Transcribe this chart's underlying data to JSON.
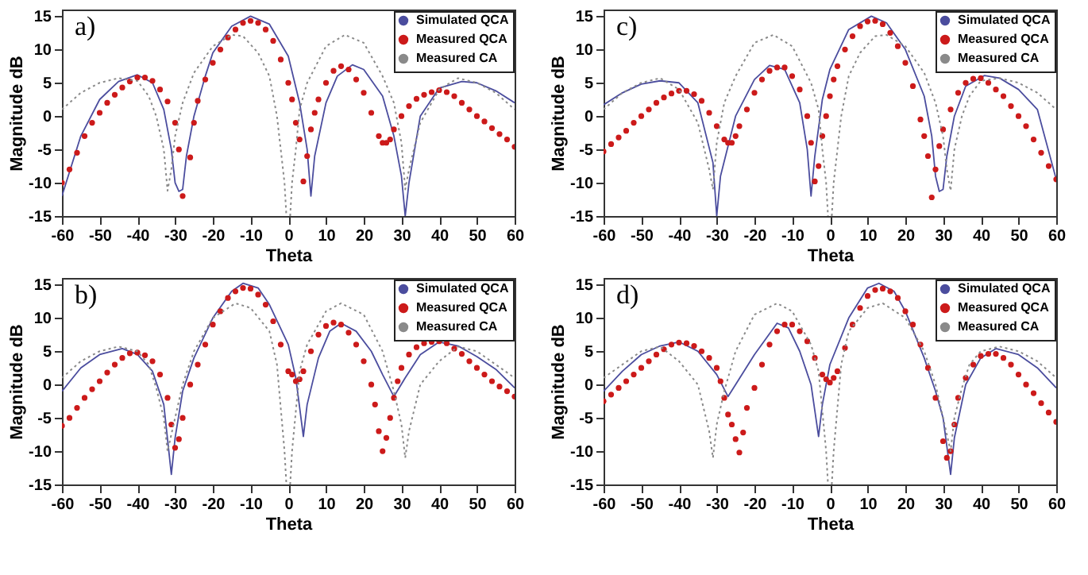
{
  "chart_data": [
    {
      "type": "line",
      "annotations": [
        "a)"
      ],
      "xlabel": "Theta",
      "ylabel": "Magnitude dB",
      "xlim": [
        -60,
        60
      ],
      "ylim": [
        -15,
        16
      ],
      "xticks": [
        -60,
        -50,
        -40,
        -30,
        -20,
        -10,
        0,
        10,
        20,
        30,
        40,
        50,
        60
      ],
      "yticks": [
        -15,
        -10,
        -5,
        0,
        5,
        10,
        15
      ],
      "legend": "top right",
      "series": [
        {
          "name": "Simulated QCA",
          "type": "line",
          "line_style": "solid",
          "color": "#4b4d9e",
          "x": [
            -60,
            -55,
            -50,
            -45,
            -40,
            -36,
            -33,
            -31,
            -30,
            -29,
            -28,
            -27,
            -25,
            -22,
            -20,
            -15,
            -10,
            -5,
            0,
            3,
            5,
            6,
            7,
            10,
            13,
            17,
            20,
            25,
            28,
            30,
            31,
            32,
            35,
            40,
            46,
            50,
            55,
            60
          ],
          "values": [
            -12,
            -3,
            2.5,
            5.2,
            6.2,
            5,
            1,
            -5,
            -10,
            -11.3,
            -11,
            -6,
            0,
            6,
            9.5,
            13.5,
            15,
            13.8,
            9,
            2,
            -5,
            -12,
            -6,
            2,
            6,
            7.7,
            7,
            3,
            -3,
            -9,
            -15,
            -10,
            0,
            4.2,
            5.2,
            5,
            3.8,
            2
          ]
        },
        {
          "name": "Measured QCA",
          "type": "scatter",
          "marker": "circle",
          "color": "#cc1a1a",
          "x": [
            -60,
            -58,
            -56,
            -54,
            -52,
            -50,
            -48,
            -46,
            -44,
            -42,
            -40,
            -38,
            -36,
            -34,
            -32,
            -30,
            -29,
            -28,
            -26,
            -25,
            -24,
            -22,
            -20,
            -18,
            -16,
            -14,
            -12,
            -10,
            -8,
            -6,
            -4,
            -2,
            0,
            1,
            2,
            3,
            4,
            5,
            6,
            7,
            8,
            10,
            12,
            14,
            16,
            18,
            20,
            22,
            24,
            25,
            26,
            27,
            28,
            30,
            32,
            34,
            36,
            38,
            40,
            42,
            44,
            46,
            48,
            50,
            52,
            54,
            56,
            58,
            60
          ],
          "values": [
            -10,
            -8,
            -5.5,
            -3,
            -1,
            0.5,
            2,
            3.2,
            4.3,
            5.2,
            5.8,
            5.8,
            5.3,
            4,
            2.2,
            -1,
            -5,
            -12,
            -6.2,
            -1,
            2.3,
            5.5,
            8,
            10,
            11.8,
            13,
            14,
            14.3,
            14,
            13,
            11.3,
            8.5,
            5,
            2.5,
            -1,
            -3.5,
            -9.8,
            -6,
            -2,
            0.5,
            2.5,
            5,
            6.8,
            7.5,
            7,
            5.5,
            3.5,
            0.5,
            -3,
            -4,
            -4,
            -3.5,
            -2,
            0,
            1.5,
            2.6,
            3.2,
            3.6,
            3.9,
            3.6,
            3,
            2,
            1,
            0,
            -0.8,
            -1.8,
            -2.7,
            -3.5,
            -4.6
          ]
        },
        {
          "name": "Measured CA",
          "type": "line",
          "line_style": "dotted",
          "color": "#8a8a8a",
          "x": [
            -60,
            -55,
            -50,
            -45,
            -40,
            -37,
            -35,
            -33,
            -32,
            -31,
            -30,
            -28,
            -25,
            -20,
            -15,
            -12,
            -8,
            -5,
            -3,
            -1,
            -0.5,
            0,
            0.5,
            1,
            2,
            3,
            5,
            10,
            15,
            20,
            25,
            28,
            30,
            31,
            32,
            35,
            40,
            45,
            50,
            55,
            60
          ],
          "values": [
            1,
            3.5,
            5,
            5.7,
            5.3,
            3,
            0,
            -5,
            -11.2,
            -8,
            -3,
            2,
            6.5,
            10.5,
            12.2,
            12,
            9.5,
            6,
            0,
            -10,
            -15,
            null,
            -15,
            -10,
            -5,
            1,
            5,
            10.5,
            12.2,
            11,
            6,
            2,
            -4,
            -11,
            -8,
            -1,
            4,
            5.7,
            5,
            3.5,
            1
          ]
        }
      ]
    },
    {
      "type": "line",
      "annotations": [
        "c)"
      ],
      "xlabel": "Theta",
      "ylabel": "Magnitude dB",
      "xlim": [
        -60,
        60
      ],
      "ylim": [
        -15,
        16
      ],
      "xticks": [
        -60,
        -50,
        -40,
        -30,
        -20,
        -10,
        0,
        10,
        20,
        30,
        40,
        50,
        60
      ],
      "yticks": [
        -15,
        -10,
        -5,
        0,
        5,
        10,
        15
      ],
      "legend": "top right",
      "series": [
        {
          "name": "Simulated QCA",
          "type": "line",
          "line_style": "solid",
          "color": "#4b4d9e",
          "x": [
            -60,
            -55,
            -50,
            -45,
            -40,
            -35,
            -31,
            -30,
            -29,
            -25,
            -20,
            -16,
            -12,
            -8,
            -6,
            -5,
            -4,
            -2,
            0,
            5,
            11,
            15,
            20,
            25,
            27,
            28,
            29,
            30,
            31,
            33,
            36,
            41,
            45,
            50,
            55,
            60
          ],
          "values": [
            1.7,
            3.5,
            4.8,
            5.3,
            5,
            2,
            -7,
            -15,
            -9,
            0,
            5.5,
            7.6,
            7,
            2,
            -5,
            -12,
            -6,
            2.5,
            7,
            13,
            15,
            14,
            10,
            3,
            -3,
            -9,
            -11.3,
            -11,
            -6,
            0,
            4.5,
            6.1,
            5.7,
            4,
            1,
            -9.5
          ]
        },
        {
          "name": "Measured QCA",
          "type": "scatter",
          "marker": "circle",
          "color": "#cc1a1a",
          "x": [
            -60,
            -58,
            -56,
            -54,
            -52,
            -50,
            -48,
            -46,
            -44,
            -42,
            -40,
            -38,
            -36,
            -34,
            -32,
            -30,
            -28,
            -27,
            -26,
            -25,
            -24,
            -22,
            -20,
            -18,
            -16,
            -14,
            -12,
            -10,
            -8,
            -6,
            -5,
            -4,
            -3,
            -2,
            -1,
            0,
            1,
            2,
            4,
            6,
            8,
            10,
            12,
            14,
            16,
            18,
            20,
            22,
            24,
            25,
            26,
            27,
            28,
            29,
            30,
            32,
            34,
            36,
            38,
            40,
            42,
            44,
            46,
            48,
            50,
            52,
            54,
            56,
            58,
            60
          ],
          "values": [
            -5.3,
            -4.2,
            -3.2,
            -2.2,
            -1,
            0,
            1,
            2,
            2.8,
            3.4,
            3.8,
            3.8,
            3.3,
            2.3,
            0.5,
            -1.5,
            -3.5,
            -4,
            -4,
            -3,
            -1.5,
            1,
            3.5,
            5.5,
            6.8,
            7.3,
            7.3,
            6,
            4,
            0,
            -4,
            -9.8,
            -7.5,
            -3,
            0,
            3,
            5.5,
            7.5,
            10,
            12,
            13.5,
            14.2,
            14.3,
            13.8,
            12.5,
            10.5,
            8,
            4.5,
            -0.5,
            -3,
            -6,
            -12.2,
            -8,
            -4.5,
            -2,
            1,
            3.5,
            5,
            5.6,
            5.7,
            5,
            4,
            3,
            1.5,
            0,
            -1.5,
            -3.5,
            -5.5,
            -7.5,
            -9.5
          ]
        },
        {
          "name": "Measured CA",
          "type": "line",
          "line_style": "dotted",
          "color": "#8a8a8a",
          "x": [
            -60,
            -55,
            -50,
            -45,
            -40,
            -35,
            -32,
            -31,
            -30,
            -28,
            -25,
            -20,
            -15,
            -10,
            -5,
            -3,
            -2,
            -1,
            -0.5,
            0,
            0.5,
            1,
            3,
            5,
            8,
            12,
            15,
            20,
            25,
            28,
            30,
            31,
            32,
            33,
            35,
            37,
            40,
            45,
            50,
            55,
            60
          ],
          "values": [
            1,
            3.5,
            5,
            5.7,
            4,
            -1,
            -8,
            -11,
            -4,
            2,
            6,
            11,
            12.2,
            10.5,
            5,
            1,
            -5,
            -10,
            -15,
            null,
            -15,
            -10,
            0,
            6,
            9.5,
            12,
            12.2,
            10.5,
            6.5,
            2,
            -3,
            -8,
            -11.2,
            -5,
            0,
            3,
            5.3,
            5.7,
            5,
            3.5,
            1
          ]
        }
      ]
    },
    {
      "type": "line",
      "annotations": [
        "b)"
      ],
      "xlabel": "Theta",
      "ylabel": "Magnitude dB",
      "xlim": [
        -60,
        60
      ],
      "ylim": [
        -15,
        16
      ],
      "xticks": [
        -60,
        -50,
        -40,
        -30,
        -20,
        -10,
        0,
        10,
        20,
        30,
        40,
        50,
        60
      ],
      "yticks": [
        -15,
        -10,
        -5,
        0,
        5,
        10,
        15
      ],
      "legend": "top right",
      "series": [
        {
          "name": "Simulated QCA",
          "type": "line",
          "line_style": "solid",
          "color": "#4b4d9e",
          "x": [
            -60,
            -55,
            -50,
            -44,
            -40,
            -36,
            -33,
            -31,
            -30,
            -28,
            -25,
            -20,
            -15,
            -12,
            -8,
            -5,
            0,
            2,
            4,
            5,
            8,
            11,
            14,
            18,
            22,
            25,
            28,
            31,
            35,
            40,
            45,
            50,
            55,
            60
          ],
          "values": [
            -1,
            2.5,
            4.5,
            5.4,
            4.5,
            2,
            -3,
            -13.5,
            -8,
            -1,
            4,
            10,
            14,
            15.2,
            14.5,
            12,
            6,
            1,
            -7.8,
            -3,
            4,
            8,
            9.2,
            8,
            5,
            1.5,
            -1.8,
            1,
            4.5,
            6.4,
            5.8,
            4.2,
            2.3,
            -0.5
          ]
        },
        {
          "name": "Measured QCA",
          "type": "scatter",
          "marker": "circle",
          "color": "#cc1a1a",
          "x": [
            -60,
            -58,
            -56,
            -54,
            -52,
            -50,
            -48,
            -46,
            -44,
            -42,
            -40,
            -38,
            -36,
            -34,
            -32,
            -31,
            -30,
            -29,
            -28,
            -26,
            -24,
            -22,
            -20,
            -18,
            -16,
            -14,
            -12,
            -10,
            -8,
            -6,
            -4,
            -2,
            0,
            1,
            2,
            3,
            4,
            6,
            8,
            10,
            12,
            14,
            16,
            18,
            20,
            22,
            23,
            24,
            25,
            26,
            27,
            28,
            29,
            30,
            32,
            34,
            36,
            38,
            40,
            42,
            44,
            46,
            48,
            50,
            52,
            54,
            56,
            58,
            60
          ],
          "values": [
            -6.2,
            -5,
            -3.5,
            -2,
            -0.7,
            0.5,
            1.8,
            3,
            4,
            4.7,
            4.8,
            4.4,
            3.5,
            1.5,
            -2,
            -6,
            -9.5,
            -8.2,
            -5,
            0,
            3,
            6,
            9,
            11,
            13,
            14,
            14.5,
            14.4,
            13.5,
            12,
            9.5,
            6,
            2,
            1.5,
            0.5,
            0.8,
            2,
            5,
            7.5,
            8.8,
            9.3,
            9,
            7.8,
            6,
            3.5,
            0,
            -3,
            -7,
            -10,
            -8,
            -5,
            -2,
            0.5,
            2.5,
            4.5,
            5.6,
            6.2,
            6.4,
            6.5,
            6.2,
            5.4,
            4.6,
            3.5,
            2.5,
            1.5,
            0.5,
            -0.3,
            -1,
            -1.8
          ]
        },
        {
          "name": "Measured CA",
          "type": "line",
          "line_style": "dotted",
          "color": "#8a8a8a",
          "x": [
            -60,
            -55,
            -50,
            -45,
            -40,
            -37,
            -35,
            -33,
            -32,
            -30,
            -28,
            -25,
            -20,
            -14,
            -10,
            -5,
            -3,
            -1,
            -0.5,
            0,
            0.5,
            1,
            3,
            5,
            10,
            14,
            20,
            25,
            28,
            30,
            31,
            32,
            35,
            40,
            45,
            50,
            55,
            60
          ],
          "values": [
            1,
            3.5,
            5,
            5.7,
            5,
            3,
            -0.5,
            -5,
            -10,
            -5,
            0,
            5,
            10,
            12.2,
            11.5,
            8,
            3,
            -10,
            -15,
            null,
            -15,
            -10,
            2,
            6,
            11,
            12.2,
            10.5,
            5,
            -1,
            -6,
            -11,
            -7,
            0,
            3.5,
            5.7,
            5,
            3,
            1
          ]
        }
      ]
    },
    {
      "type": "line",
      "annotations": [
        "d)"
      ],
      "xlabel": "Theta",
      "ylabel": "Magnitude dB",
      "xlim": [
        -60,
        60
      ],
      "ylim": [
        -15,
        16
      ],
      "xticks": [
        -60,
        -50,
        -40,
        -30,
        -20,
        -10,
        0,
        10,
        20,
        30,
        40,
        50,
        60
      ],
      "yticks": [
        -15,
        -10,
        -5,
        0,
        5,
        10,
        15
      ],
      "legend": "top right",
      "series": [
        {
          "name": "Simulated QCA",
          "type": "line",
          "line_style": "solid",
          "color": "#4b4d9e",
          "x": [
            -60,
            -55,
            -50,
            -45,
            -40,
            -35,
            -30,
            -27,
            -25,
            -20,
            -14,
            -11,
            -8,
            -5,
            -3,
            -2,
            0,
            5,
            10,
            13,
            17,
            20,
            25,
            28,
            30,
            32,
            33,
            36,
            40,
            44,
            50,
            55,
            60
          ],
          "values": [
            -1,
            2,
            4.5,
            5.8,
            6.4,
            5,
            1.5,
            -1.8,
            0,
            4.5,
            9.2,
            8.5,
            5,
            0,
            -7.8,
            -3,
            3,
            10,
            14.5,
            15.2,
            14,
            11,
            4,
            -1,
            -5,
            -13.5,
            -8,
            0,
            4,
            5.4,
            4.5,
            2.5,
            -0.5
          ]
        },
        {
          "name": "Measured QCA",
          "type": "scatter",
          "marker": "circle",
          "color": "#cc1a1a",
          "x": [
            -60,
            -58,
            -56,
            -54,
            -52,
            -50,
            -48,
            -46,
            -44,
            -42,
            -40,
            -38,
            -36,
            -34,
            -32,
            -30,
            -29,
            -28,
            -27,
            -26,
            -25,
            -24,
            -23,
            -22,
            -20,
            -18,
            -16,
            -14,
            -12,
            -10,
            -8,
            -6,
            -4,
            -2,
            -1,
            0,
            1,
            2,
            4,
            6,
            8,
            10,
            12,
            14,
            16,
            18,
            20,
            22,
            24,
            26,
            28,
            30,
            31,
            32,
            33,
            34,
            36,
            38,
            40,
            42,
            44,
            46,
            48,
            50,
            52,
            54,
            56,
            58,
            60
          ],
          "values": [
            -2.5,
            -1.5,
            -0.5,
            0.5,
            1.5,
            2.5,
            3.5,
            4.5,
            5.3,
            6,
            6.3,
            6.2,
            5.8,
            5,
            4,
            2.5,
            0.5,
            -2,
            -4.5,
            -6,
            -8.2,
            -10.2,
            -7.2,
            -3.5,
            -0.5,
            3,
            6,
            8,
            9,
            9,
            8,
            6.5,
            4,
            1.5,
            0.8,
            0.3,
            1,
            2,
            5.5,
            9,
            11.5,
            13.3,
            14.2,
            14.4,
            14,
            13,
            11,
            9,
            6,
            2.5,
            -2,
            -8.5,
            -11,
            -10,
            -6,
            -2,
            1,
            3,
            4.3,
            4.6,
            4.6,
            4,
            3,
            1.5,
            0,
            -1.3,
            -2.8,
            -4.2,
            -5.6
          ]
        },
        {
          "name": "Measured CA",
          "type": "line",
          "line_style": "dotted",
          "color": "#8a8a8a",
          "x": [
            -60,
            -55,
            -50,
            -45,
            -40,
            -35,
            -32,
            -31,
            -30,
            -28,
            -25,
            -20,
            -14,
            -10,
            -5,
            -3,
            -1,
            -0.5,
            0,
            0.5,
            1,
            3,
            5,
            10,
            14,
            20,
            25,
            28,
            30,
            32,
            33,
            35,
            37,
            40,
            45,
            50,
            55,
            60
          ],
          "values": [
            1,
            3,
            5,
            5.7,
            3.5,
            0,
            -7,
            -11,
            -6,
            -1,
            5,
            10.5,
            12.2,
            11,
            6,
            2,
            -10,
            -15,
            null,
            -15,
            -10,
            3,
            8,
            11.5,
            12.2,
            10,
            5,
            0,
            -5,
            -10,
            -5,
            -0.5,
            3,
            5,
            5.7,
            5,
            3.5,
            1
          ]
        }
      ]
    }
  ]
}
